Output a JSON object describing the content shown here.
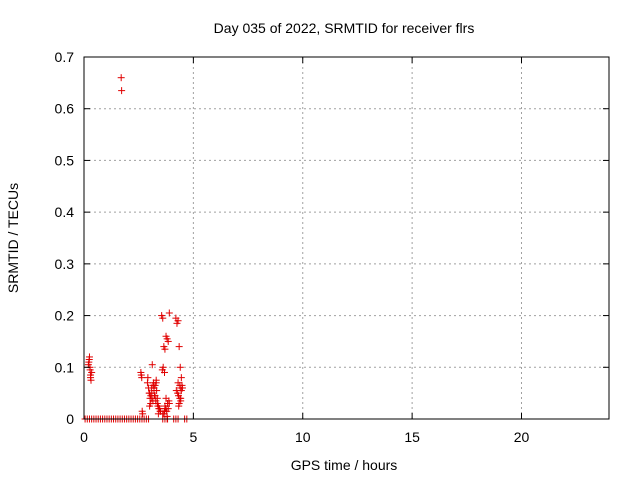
{
  "chart_data": {
    "type": "scatter",
    "title": "Day 035 of 2022, SRMTID for receiver flrs",
    "xlabel": "GPS time / hours",
    "ylabel": "SRMTID / TECUs",
    "xlim": [
      0,
      24
    ],
    "ylim": [
      0,
      0.7
    ],
    "xticks": [
      0,
      5,
      10,
      15,
      20
    ],
    "yticks": [
      0,
      0.1,
      0.2,
      0.3,
      0.4,
      0.5,
      0.6,
      0.7
    ],
    "xtick_labels": [
      "0",
      "5",
      "10",
      "15",
      "20"
    ],
    "ytick_labels": [
      "0",
      "0.1",
      "0.2",
      "0.3",
      "0.4",
      "0.5",
      "0.6",
      "0.7"
    ],
    "grid": true,
    "marker": "+",
    "marker_color": "#e00000",
    "series": [
      {
        "name": "SRMTID",
        "x": [
          0.05,
          0.15,
          0.25,
          0.35,
          0.45,
          0.55,
          0.65,
          0.75,
          0.85,
          0.95,
          1.05,
          1.15,
          1.25,
          1.35,
          1.45,
          1.55,
          1.65,
          1.75,
          1.85,
          1.95,
          2.05,
          2.15,
          2.25,
          2.35,
          2.45,
          2.55,
          2.65,
          2.75,
          2.85,
          2.95,
          0.2,
          0.25,
          0.28,
          0.3,
          0.32,
          0.22,
          0.27,
          0.35,
          0.3,
          0.24,
          1.7,
          1.72,
          2.6,
          2.62,
          2.64,
          2.66,
          2.68,
          2.9,
          2.95,
          3.0,
          3.05,
          3.1,
          3.15,
          3.2,
          3.25,
          3.3,
          3.35,
          3.4,
          3.45,
          3.5,
          2.92,
          2.98,
          3.02,
          3.08,
          3.12,
          3.18,
          3.22,
          3.28,
          3.32,
          3.38,
          3.42,
          3.48,
          3.05,
          3.15,
          3.25,
          3.35,
          3.0,
          3.1,
          3.2,
          3.3,
          3.4,
          3.55,
          3.6,
          3.65,
          3.7,
          3.75,
          3.8,
          3.85,
          3.9,
          3.58,
          3.62,
          3.68,
          3.72,
          3.78,
          3.82,
          3.88,
          3.65,
          3.7,
          3.75,
          3.8,
          3.85,
          3.9,
          3.6,
          3.68,
          3.75,
          3.82,
          4.2,
          4.25,
          4.3,
          4.35,
          4.4,
          4.45,
          4.5,
          4.22,
          4.28,
          4.32,
          4.38,
          4.42,
          4.48,
          4.3,
          4.35,
          4.4,
          4.45,
          4.33,
          4.38,
          4.42,
          3.6,
          3.7,
          3.8,
          4.1,
          4.2,
          4.3,
          4.6,
          4.7
        ],
        "y": [
          0,
          0,
          0,
          0,
          0,
          0,
          0,
          0,
          0,
          0,
          0,
          0,
          0,
          0,
          0,
          0,
          0,
          0,
          0,
          0,
          0,
          0,
          0,
          0,
          0,
          0,
          0,
          0,
          0,
          0,
          0.105,
          0.12,
          0.095,
          0.085,
          0.075,
          0.11,
          0.1,
          0.09,
          0.08,
          0.115,
          0.66,
          0.635,
          0.09,
          0.085,
          0.08,
          0.015,
          0.01,
          0.07,
          0.06,
          0.05,
          0.045,
          0.04,
          0.035,
          0.055,
          0.065,
          0.075,
          0.03,
          0.025,
          0.02,
          0.015,
          0.08,
          0.05,
          0.04,
          0.06,
          0.105,
          0.07,
          0.045,
          0.035,
          0.055,
          0.025,
          0.02,
          0.015,
          0.03,
          0.065,
          0.045,
          0.04,
          0.025,
          0.05,
          0.06,
          0.07,
          0.01,
          0.2,
          0.195,
          0.14,
          0.135,
          0.16,
          0.155,
          0.15,
          0.205,
          0.095,
          0.1,
          0.09,
          0.02,
          0.015,
          0.03,
          0.035,
          0.01,
          0.025,
          0.04,
          0.005,
          0.02,
          0.03,
          0.01,
          0.015,
          0.02,
          0.0,
          0.195,
          0.185,
          0.19,
          0.14,
          0.1,
          0.08,
          0.06,
          0.055,
          0.05,
          0.045,
          0.04,
          0.035,
          0.065,
          0.07,
          0.03,
          0.06,
          0.055,
          0.025,
          0.065,
          0.04,
          0,
          0,
          0,
          0,
          0,
          0,
          0,
          0
        ]
      }
    ]
  }
}
